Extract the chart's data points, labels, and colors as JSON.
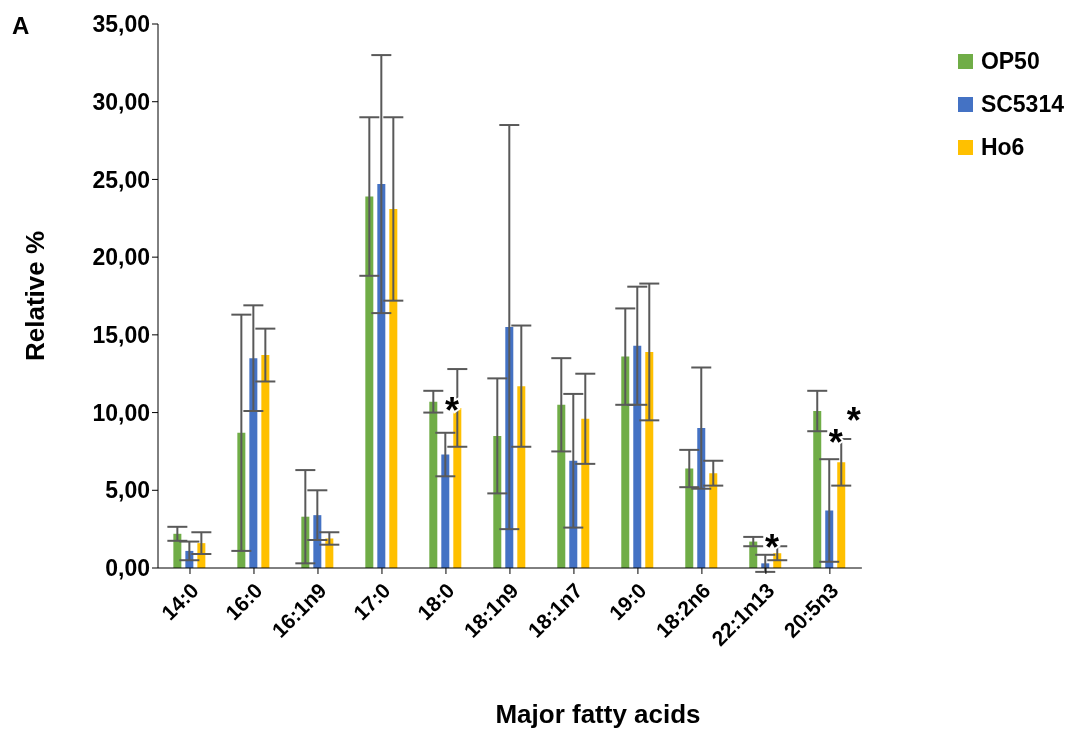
{
  "chart_data": {
    "type": "bar",
    "xlabel": "Major fatty acids",
    "ylabel": "Relative %",
    "categories": [
      "14:0",
      "16:0",
      "16:1n9",
      "17:0",
      "18:0",
      "18:1n9",
      "18:1n7",
      "19:0",
      "18:2n6",
      "22:1n13",
      "20:5n3"
    ],
    "series": [
      {
        "name": "OP50",
        "color": "#70ad47",
        "values": [
          2.2,
          8.7,
          3.3,
          23.9,
          10.7,
          8.5,
          10.5,
          13.6,
          6.4,
          1.7,
          10.1
        ],
        "errors": [
          0.45,
          7.6,
          3.0,
          5.1,
          0.7,
          3.7,
          3.0,
          3.1,
          1.2,
          0.3,
          1.3
        ]
      },
      {
        "name": "SC5314",
        "color": "#4472c4",
        "values": [
          1.1,
          13.5,
          3.4,
          24.7,
          7.3,
          15.5,
          6.9,
          14.3,
          9.0,
          0.3,
          3.7
        ],
        "errors": [
          0.6,
          3.4,
          1.6,
          8.3,
          1.4,
          13.0,
          4.3,
          3.8,
          3.9,
          0.55,
          3.3
        ]
      },
      {
        "name": "Ho6",
        "color": "#ffc000",
        "values": [
          1.6,
          13.7,
          1.9,
          23.1,
          10.3,
          11.7,
          9.6,
          13.9,
          6.1,
          0.95,
          6.8
        ],
        "errors": [
          0.7,
          1.7,
          0.4,
          5.9,
          2.5,
          3.9,
          2.9,
          4.4,
          0.8,
          0.45,
          1.5
        ]
      }
    ],
    "ylim": [
      0,
      35
    ],
    "yticks": [
      {
        "value": 0,
        "label": "0,00"
      },
      {
        "value": 5,
        "label": "5,00"
      },
      {
        "value": 10,
        "label": "10,00"
      },
      {
        "value": 15,
        "label": "15,00"
      },
      {
        "value": 20,
        "label": "20,00"
      },
      {
        "value": 25,
        "label": "25,00"
      },
      {
        "value": 30,
        "label": "30,00"
      },
      {
        "value": 35,
        "label": "35,00"
      }
    ],
    "grid": false,
    "legend": "top right",
    "annotations": [
      "A",
      {
        "text": "*",
        "x": "18:0",
        "y": 10.2
      },
      {
        "text": "*",
        "x": "22:1n13",
        "y": 1.4
      },
      {
        "text": "*",
        "x": "20:5n3",
        "y": 8.2
      },
      {
        "text": "*",
        "x": "20:5n3",
        "y": 9.6
      }
    ]
  }
}
